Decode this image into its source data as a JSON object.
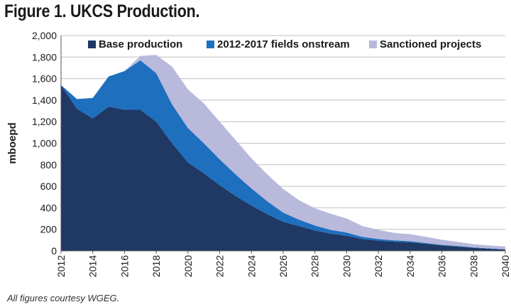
{
  "title": "Figure 1. UKCS Production.",
  "caption": "All figures courtesy WGEG.",
  "colors": {
    "base": "#1f3864",
    "fields": "#1f6fbf",
    "sanctioned": "#b9b9dc",
    "grid": "#bfbfbf",
    "axis": "#555555",
    "text": "#1a1a1a"
  },
  "chart_data": {
    "type": "area",
    "stacked": true,
    "title": "",
    "xlabel": "",
    "ylabel": "mboepd",
    "x": [
      2012,
      2013,
      2014,
      2015,
      2016,
      2017,
      2018,
      2019,
      2020,
      2021,
      2022,
      2023,
      2024,
      2025,
      2026,
      2027,
      2028,
      2029,
      2030,
      2031,
      2032,
      2033,
      2034,
      2035,
      2036,
      2037,
      2038,
      2039,
      2040
    ],
    "xlim": [
      2012,
      2040
    ],
    "ylim": [
      0,
      2000
    ],
    "x_ticks": [
      "2012",
      "2014",
      "2016",
      "2018",
      "2020",
      "2022",
      "2024",
      "2026",
      "2028",
      "2030",
      "2032",
      "2034",
      "2036",
      "2038",
      "2040"
    ],
    "y_ticks": [
      "0",
      "200",
      "400",
      "600",
      "800",
      "1,000",
      "1,200",
      "1,400",
      "1,600",
      "1,800",
      "2,000"
    ],
    "grid": "horizontal",
    "legend_position": "top",
    "series": [
      {
        "name": "Base production",
        "values": [
          1540,
          1320,
          1230,
          1340,
          1310,
          1310,
          1200,
          1000,
          820,
          720,
          610,
          510,
          420,
          340,
          270,
          230,
          190,
          160,
          140,
          110,
          95,
          85,
          80,
          65,
          50,
          40,
          28,
          20,
          12
        ]
      },
      {
        "name": "2012-2017 fields onstream",
        "values": [
          0,
          90,
          190,
          280,
          360,
          460,
          450,
          360,
          320,
          280,
          240,
          200,
          160,
          120,
          85,
          60,
          45,
          35,
          30,
          20,
          15,
          12,
          10,
          8,
          6,
          5,
          4,
          3,
          2
        ]
      },
      {
        "name": "Sanctioned projects",
        "values": [
          0,
          0,
          0,
          0,
          0,
          40,
          170,
          350,
          360,
          370,
          350,
          320,
          280,
          250,
          220,
          180,
          160,
          150,
          130,
          100,
          85,
          70,
          65,
          57,
          47,
          38,
          30,
          27,
          26
        ]
      }
    ]
  }
}
